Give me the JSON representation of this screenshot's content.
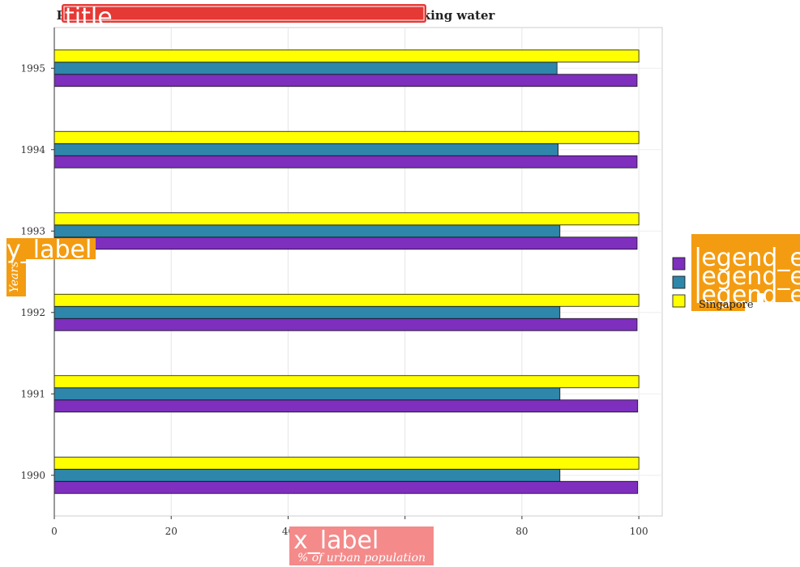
{
  "badges": {
    "title": "title",
    "x_label": "x_label",
    "y_label": "y_label",
    "legend_entries": [
      "legend_e",
      "legend_e",
      "legend_e"
    ]
  },
  "chart_data": {
    "type": "bar",
    "orientation": "horizontal",
    "title": "Percentage of urban population having access to drinking water",
    "xlabel": "% of urban population",
    "ylabel": "Years",
    "categories": [
      "1990",
      "1991",
      "1992",
      "1993",
      "1994",
      "1995"
    ],
    "xlim": [
      0,
      104
    ],
    "xticks": [
      0,
      20,
      40,
      60,
      80,
      100
    ],
    "grid": true,
    "legend_position": "right",
    "series": [
      {
        "name": "",
        "color": "#7e2fbe",
        "values": [
          99.8,
          99.8,
          99.7,
          99.7,
          99.7,
          99.7
        ]
      },
      {
        "name": "",
        "color": "#2e86ab",
        "values": [
          86.5,
          86.5,
          86.5,
          86.5,
          86.2,
          86.0
        ]
      },
      {
        "name": "Singapore",
        "color": "#ffff00",
        "values": [
          100,
          100,
          100,
          100,
          100,
          100
        ]
      }
    ]
  }
}
